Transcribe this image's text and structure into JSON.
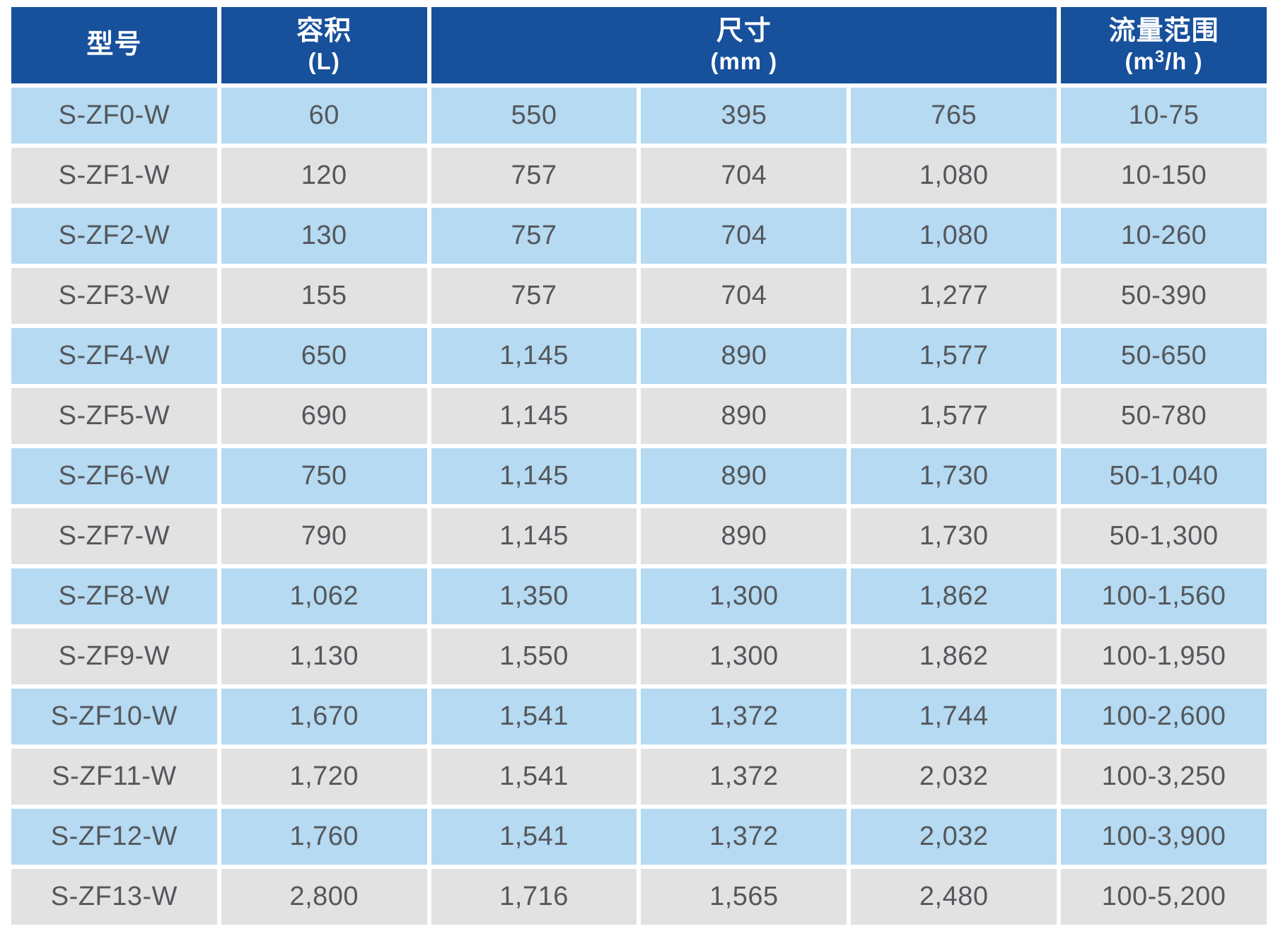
{
  "chart_data": {
    "type": "table",
    "header": {
      "model_title": "型号",
      "volume_title": "容积",
      "volume_unit": "(L)",
      "dimensions_title": "尺寸",
      "dimensions_unit": "(mm )",
      "dimensions_colspan": "3",
      "flow_title": "流量范围",
      "flow_unit_prefix": "(m",
      "flow_unit_sup": "3",
      "flow_unit_suffix": "/h )"
    },
    "columns_semantic": [
      {
        "label": "型号",
        "colspan": 1
      },
      {
        "label": "容积 (L)",
        "colspan": 1
      },
      {
        "label": "尺寸 (mm)",
        "colspan": 3
      },
      {
        "label": "流量范围 (m³/h)",
        "colspan": 1
      }
    ],
    "rows": [
      [
        "S-ZF0-W",
        "60",
        "550",
        "395",
        "765",
        "10-75"
      ],
      [
        "S-ZF1-W",
        "120",
        "757",
        "704",
        "1,080",
        "10-150"
      ],
      [
        "S-ZF2-W",
        "130",
        "757",
        "704",
        "1,080",
        "10-260"
      ],
      [
        "S-ZF3-W",
        "155",
        "757",
        "704",
        "1,277",
        "50-390"
      ],
      [
        "S-ZF4-W",
        "650",
        "1,145",
        "890",
        "1,577",
        "50-650"
      ],
      [
        "S-ZF5-W",
        "690",
        "1,145",
        "890",
        "1,577",
        "50-780"
      ],
      [
        "S-ZF6-W",
        "750",
        "1,145",
        "890",
        "1,730",
        "50-1,040"
      ],
      [
        "S-ZF7-W",
        "790",
        "1,145",
        "890",
        "1,730",
        "50-1,300"
      ],
      [
        "S-ZF8-W",
        "1,062",
        "1,350",
        "1,300",
        "1,862",
        "100-1,560"
      ],
      [
        "S-ZF9-W",
        "1,130",
        "1,550",
        "1,300",
        "1,862",
        "100-1,950"
      ],
      [
        "S-ZF10-W",
        "1,670",
        "1,541",
        "1,372",
        "1,744",
        "100-2,600"
      ],
      [
        "S-ZF11-W",
        "1,720",
        "1,541",
        "1,372",
        "2,032",
        "100-3,250"
      ],
      [
        "S-ZF12-W",
        "1,760",
        "1,541",
        "1,372",
        "2,032",
        "100-3,900"
      ],
      [
        "S-ZF13-W",
        "2,800",
        "1,716",
        "1,565",
        "2,480",
        "100-5,200"
      ]
    ]
  },
  "colors": {
    "header_bg": "#17509B",
    "header_text": "#FFFFFF",
    "row_blue": "#B5DAF2",
    "row_gray": "#E2E2E2",
    "cell_text": "#54575B",
    "gap": "#FFFFFF"
  }
}
